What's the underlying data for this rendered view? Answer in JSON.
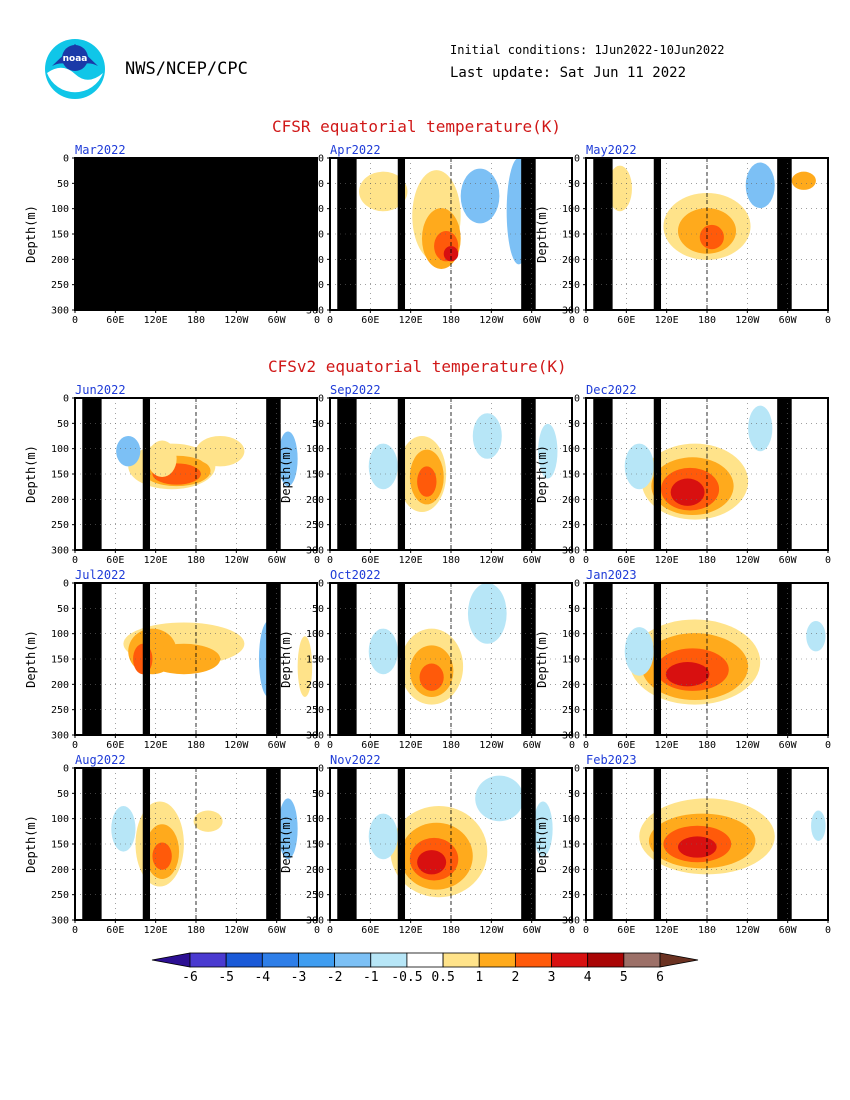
{
  "header": {
    "logo_text": "noaa",
    "agency": "NWS/NCEP/CPC",
    "initial_conditions": "Initial conditions: 1Jun2022-10Jun2022",
    "last_update": "Last update: Sat Jun 11 2022"
  },
  "sections": {
    "cfsr_title": "CFSR equatorial temperature(K)",
    "cfsv2_title": "CFSv2 equatorial temperature(K)"
  },
  "axes": {
    "ylabel": "Depth(m)",
    "yticks": [
      "0",
      "50",
      "100",
      "150",
      "200",
      "250",
      "300"
    ],
    "xticks": [
      "0",
      "60E",
      "120E",
      "180",
      "120W",
      "60W",
      "0"
    ]
  },
  "colorbar": {
    "labels": [
      "-6",
      "-5",
      "-4",
      "-3",
      "-2",
      "-1",
      "-0.5",
      "0.5",
      "1",
      "2",
      "3",
      "4",
      "5",
      "6"
    ],
    "colors": [
      "#2c0f93",
      "#4a3ad0",
      "#1a5ad8",
      "#2e7ee8",
      "#3f9df0",
      "#7cc0f5",
      "#b7e6f7",
      "#ffffff",
      "#ffe38a",
      "#ffaa1c",
      "#ff5a0a",
      "#d81010",
      "#a90505",
      "#9c7068",
      "#6b3222"
    ]
  },
  "chart_data": [
    {
      "type": "heatmap",
      "panel": "Mar2022",
      "title": "Mar2022",
      "ylim": [
        300,
        0
      ],
      "xlabel": "",
      "ylabel": "Depth(m)",
      "pattern": "no-data"
    },
    {
      "type": "heatmap",
      "panel": "Apr2022",
      "title": "Apr2022",
      "ylim": [
        300,
        0
      ],
      "ylabel": "Depth(m)",
      "max_anomaly_K": 3,
      "max_location": "near 180, ~180 m"
    },
    {
      "type": "heatmap",
      "panel": "May2022",
      "title": "May2022",
      "ylim": [
        300,
        0
      ],
      "ylabel": "Depth(m)",
      "max_anomaly_K": 2,
      "max_location": "160E-180, ~150 m"
    },
    {
      "type": "heatmap",
      "panel": "Jun2022",
      "title": "Jun2022",
      "ylim": [
        300,
        0
      ],
      "ylabel": "Depth(m)",
      "max_anomaly_K": 3,
      "max_location": "150E-180, ~130 m"
    },
    {
      "type": "heatmap",
      "panel": "Sep2022",
      "title": "Sep2022",
      "ylim": [
        300,
        0
      ],
      "ylabel": "Depth(m)",
      "max_anomaly_K": 2,
      "max_location": "~130E, ~170 m"
    },
    {
      "type": "heatmap",
      "panel": "Dec2022",
      "title": "Dec2022",
      "ylim": [
        300,
        0
      ],
      "ylabel": "Depth(m)",
      "max_anomaly_K": 4,
      "max_location": "~150E, ~170 m"
    },
    {
      "type": "heatmap",
      "panel": "Jul2022",
      "title": "Jul2022",
      "ylim": [
        300,
        0
      ],
      "ylabel": "Depth(m)",
      "max_anomaly_K": 2,
      "max_location": "~150E, ~120 m"
    },
    {
      "type": "heatmap",
      "panel": "Oct2022",
      "title": "Oct2022",
      "ylim": [
        300,
        0
      ],
      "ylabel": "Depth(m)",
      "max_anomaly_K": 3,
      "max_location": "~130E, ~170 m"
    },
    {
      "type": "heatmap",
      "panel": "Jan2023",
      "title": "Jan2023",
      "ylim": [
        300,
        0
      ],
      "ylabel": "Depth(m)",
      "max_anomaly_K": 4,
      "max_location": "~165E, ~160 m"
    },
    {
      "type": "heatmap",
      "panel": "Aug2022",
      "title": "Aug2022",
      "ylim": [
        300,
        0
      ],
      "ylabel": "Depth(m)",
      "max_anomaly_K": 2,
      "max_location": "~120E, ~150 m"
    },
    {
      "type": "heatmap",
      "panel": "Nov2022",
      "title": "Nov2022",
      "ylim": [
        300,
        0
      ],
      "ylabel": "Depth(m)",
      "max_anomaly_K": 4,
      "max_location": "~135E, ~170 m"
    },
    {
      "type": "heatmap",
      "panel": "Feb2023",
      "title": "Feb2023",
      "ylim": [
        300,
        0
      ],
      "ylabel": "Depth(m)",
      "max_anomaly_K": 3,
      "max_location": "~170E, ~150 m"
    }
  ]
}
